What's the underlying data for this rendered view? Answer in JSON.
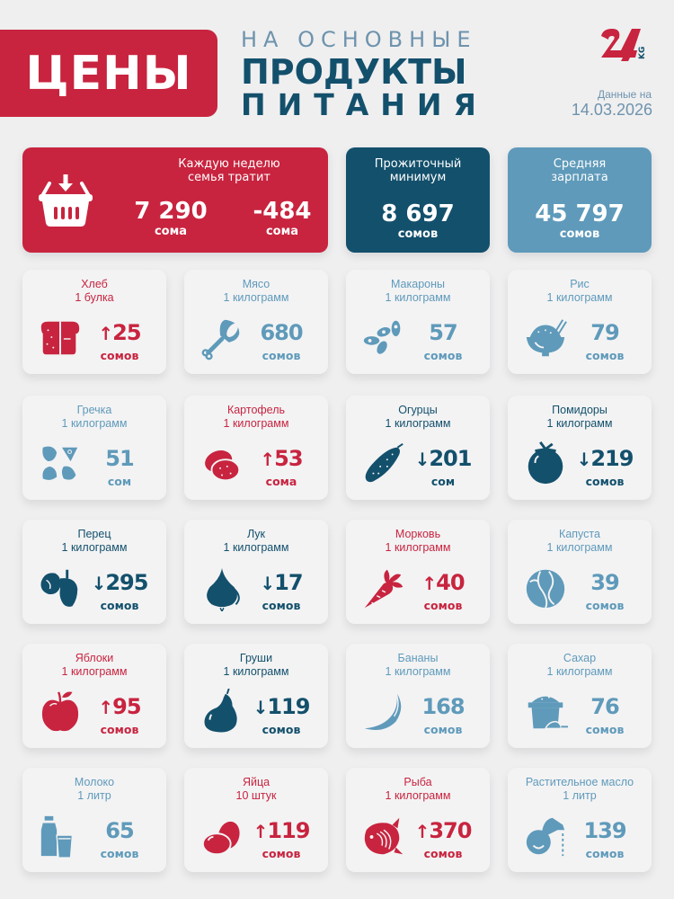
{
  "header": {
    "title": "ЦЕНЫ",
    "subtitle_line1": "НА ОСНОВНЫЕ",
    "subtitle_line2": "ПРОДУКТЫ",
    "subtitle_line3": "ПИТАНИЯ",
    "logo_text": "24",
    "logo_suffix": "KG",
    "date_label": "Данные на",
    "date_value": "14.03.2026"
  },
  "colors": {
    "red": "#c8243f",
    "dark_blue": "#13506c",
    "light_blue": "#5f9aba",
    "background": "#efeff0",
    "card": "#f3f3f4"
  },
  "summary": {
    "family": {
      "label_line1": "Каждую неделю",
      "label_line2": "семья тратит",
      "icon": "basket-icon",
      "value": "7 290",
      "unit": "сома",
      "change": "-484",
      "change_unit": "сома"
    },
    "minimum": {
      "label_line1": "Прожиточный",
      "label_line2": "минимум",
      "value": "8 697",
      "unit": "сомов"
    },
    "salary": {
      "label_line1": "Средняя",
      "label_line2": "зарплата",
      "value": "45 797",
      "unit": "сомов"
    }
  },
  "products": [
    {
      "name": "Хлеб",
      "qty": "1 булка",
      "price": "25",
      "unit": "сомов",
      "trend": "up",
      "arrow": "↑",
      "color": "red",
      "icon": "bread-icon"
    },
    {
      "name": "Мясо",
      "qty": "1 килограмм",
      "price": "680",
      "unit": "сомов",
      "trend": "none",
      "arrow": "",
      "color": "light",
      "icon": "meat-icon"
    },
    {
      "name": "Макароны",
      "qty": "1 килограмм",
      "price": "57",
      "unit": "сомов",
      "trend": "none",
      "arrow": "",
      "color": "light",
      "icon": "pasta-icon"
    },
    {
      "name": "Рис",
      "qty": "1 килограмм",
      "price": "79",
      "unit": "сомов",
      "trend": "none",
      "arrow": "",
      "color": "light",
      "icon": "rice-bowl-icon"
    },
    {
      "name": "Гречка",
      "qty": "1 килограмм",
      "price": "51",
      "unit": "сом",
      "trend": "none",
      "arrow": "",
      "color": "light",
      "icon": "buckwheat-icon"
    },
    {
      "name": "Картофель",
      "qty": "1 килограмм",
      "price": "53",
      "unit": "сома",
      "trend": "up",
      "arrow": "↑",
      "color": "red",
      "icon": "potato-icon"
    },
    {
      "name": "Огурцы",
      "qty": "1 килограмм",
      "price": "201",
      "unit": "сом",
      "trend": "down",
      "arrow": "↓",
      "color": "dark",
      "icon": "cucumber-icon"
    },
    {
      "name": "Помидоры",
      "qty": "1 килограмм",
      "price": "219",
      "unit": "сомов",
      "trend": "down",
      "arrow": "↓",
      "color": "dark",
      "icon": "tomato-icon"
    },
    {
      "name": "Перец",
      "qty": "1 килограмм",
      "price": "295",
      "unit": "сомов",
      "trend": "down",
      "arrow": "↓",
      "color": "dark",
      "icon": "pepper-icon"
    },
    {
      "name": "Лук",
      "qty": "1 килограмм",
      "price": "17",
      "unit": "сомов",
      "trend": "down",
      "arrow": "↓",
      "color": "dark",
      "icon": "onion-icon"
    },
    {
      "name": "Морковь",
      "qty": "1 килограмм",
      "price": "40",
      "unit": "сомов",
      "trend": "up",
      "arrow": "↑",
      "color": "red",
      "icon": "carrot-icon"
    },
    {
      "name": "Капуста",
      "qty": "1 килограмм",
      "price": "39",
      "unit": "сомов",
      "trend": "none",
      "arrow": "",
      "color": "light",
      "icon": "cabbage-icon"
    },
    {
      "name": "Яблоки",
      "qty": "1 килограмм",
      "price": "95",
      "unit": "сомов",
      "trend": "up",
      "arrow": "↑",
      "color": "red",
      "icon": "apple-icon"
    },
    {
      "name": "Груши",
      "qty": "1 килограмм",
      "price": "119",
      "unit": "сомов",
      "trend": "down",
      "arrow": "↓",
      "color": "dark",
      "icon": "pear-icon"
    },
    {
      "name": "Бананы",
      "qty": "1 килограмм",
      "price": "168",
      "unit": "сомов",
      "trend": "none",
      "arrow": "",
      "color": "light",
      "icon": "banana-icon"
    },
    {
      "name": "Сахар",
      "qty": "1 килограмм",
      "price": "76",
      "unit": "сомов",
      "trend": "none",
      "arrow": "",
      "color": "light",
      "icon": "sugar-icon"
    },
    {
      "name": "Молоко",
      "qty": "1 литр",
      "price": "65",
      "unit": "сомов",
      "trend": "none",
      "arrow": "",
      "color": "light",
      "icon": "milk-icon"
    },
    {
      "name": "Яйца",
      "qty": "10 штук",
      "price": "119",
      "unit": "сомов",
      "trend": "up",
      "arrow": "↑",
      "color": "red",
      "icon": "eggs-icon"
    },
    {
      "name": "Рыба",
      "qty": "1 килограмм",
      "price": "370",
      "unit": "сомов",
      "trend": "up",
      "arrow": "↑",
      "color": "red",
      "icon": "fish-icon"
    },
    {
      "name": "Растительное масло",
      "qty": "1 литр",
      "price": "139",
      "unit": "сомов",
      "trend": "none",
      "arrow": "",
      "color": "light",
      "icon": "oil-icon"
    }
  ]
}
